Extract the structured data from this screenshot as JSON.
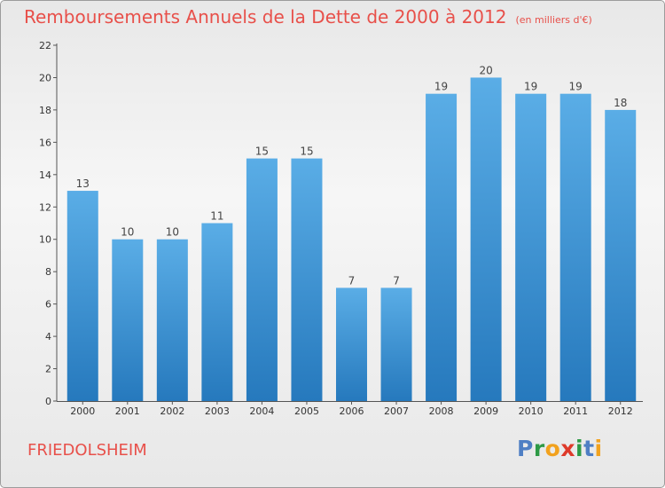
{
  "title": "Remboursements Annuels de la Dette de 2000 à 2012",
  "unit": "(en milliers d'€)",
  "commune": "FRIEDOLSHEIM",
  "logo": {
    "text": "Proxiti",
    "letters": [
      "P",
      "r",
      "o",
      "x",
      "i",
      "t",
      "i"
    ],
    "colors": [
      "#4f7fc4",
      "#2e9a46",
      "#f2a21e",
      "#de3a2a",
      "#2e9a46",
      "#4f7fc4",
      "#f2a21e"
    ]
  },
  "colors": {
    "accent": "#e8504a",
    "bar_top": "#5aade6",
    "bar_bottom": "#2679bd"
  },
  "chart_data": {
    "type": "bar",
    "categories": [
      "2000",
      "2001",
      "2002",
      "2003",
      "2004",
      "2005",
      "2006",
      "2007",
      "2008",
      "2009",
      "2010",
      "2011",
      "2012"
    ],
    "values": [
      13,
      10,
      10,
      11,
      15,
      15,
      7,
      7,
      19,
      20,
      19,
      19,
      18
    ],
    "y_ticks": [
      "0",
      "2",
      "4",
      "6",
      "8",
      "10",
      "12",
      "14",
      "16",
      "18",
      "20",
      "22"
    ],
    "ylim": [
      0,
      22
    ],
    "grid": false,
    "data_labels": true,
    "title": "Remboursements Annuels de la Dette de 2000 à 2012",
    "ylabel": "",
    "xlabel": ""
  }
}
